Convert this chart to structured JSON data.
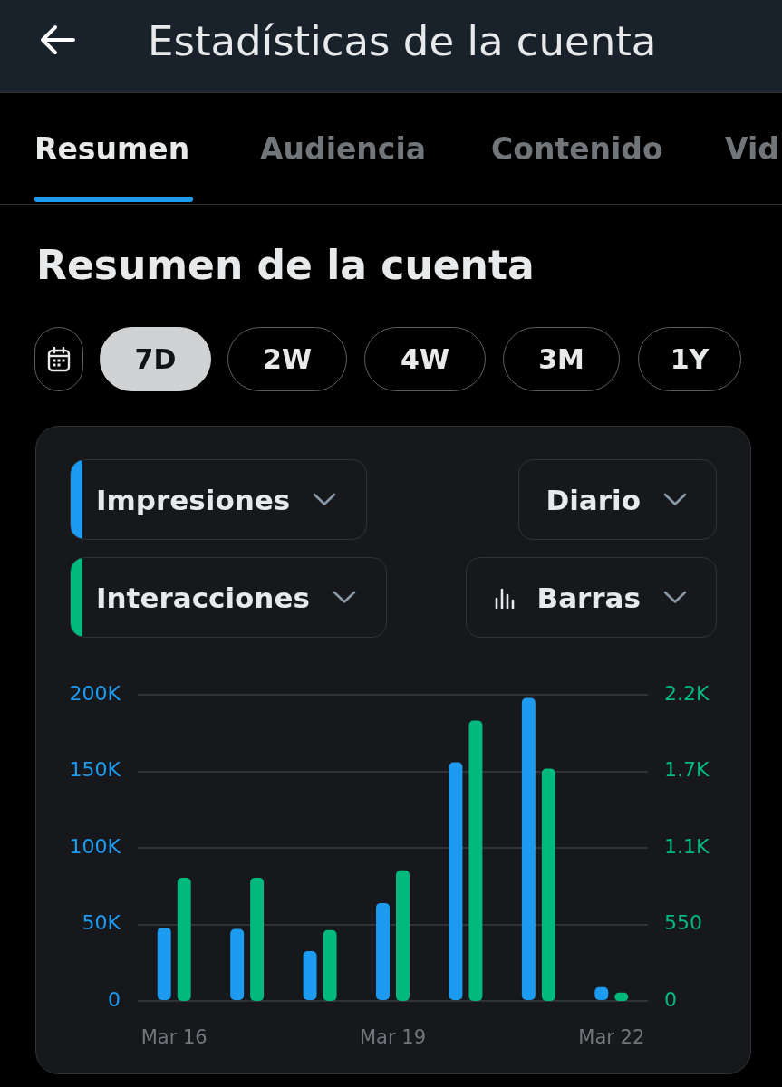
{
  "chart_data": {
    "type": "bar",
    "title": "Estadísticas de la cuenta",
    "subtitle": "Resumen de la cuenta",
    "annotations": [
      "Resumen",
      "Audiencia",
      "Contenido",
      "Vid",
      "7D",
      "2W",
      "4W",
      "3M",
      "1Y",
      "Diario",
      "Barras"
    ],
    "categories": [
      "Mar 16",
      null,
      null,
      "Mar 19",
      null,
      null,
      "Mar 22"
    ],
    "series": [
      {
        "name": "Impresiones",
        "color": "#1d9bf0",
        "values": [
          48000,
          47000,
          32500,
          64000,
          156000,
          198000,
          9000
        ]
      },
      {
        "name": "Interacciones",
        "color": "#00ba7c",
        "values": [
          885,
          885,
          510,
          940,
          2015,
          1670,
          60
        ],
        "axis": "y2"
      }
    ],
    "ylim": [
      0,
      200000
    ],
    "yticks": [
      0,
      {
        "value": 50000,
        "label": "50K"
      },
      {
        "value": 100000,
        "label": "100K"
      },
      {
        "value": 150000,
        "label": "150K"
      },
      {
        "value": 200000,
        "label": "200K"
      }
    ],
    "y2lim": [
      0,
      2200
    ],
    "y2ticks": [
      0,
      550,
      {
        "value": 1100,
        "label": "1.1K"
      },
      {
        "value": 1650,
        "label": "1.7K"
      },
      {
        "value": 2200,
        "label": "2.2K"
      }
    ],
    "grid": "y",
    "legend": "top left"
  }
}
